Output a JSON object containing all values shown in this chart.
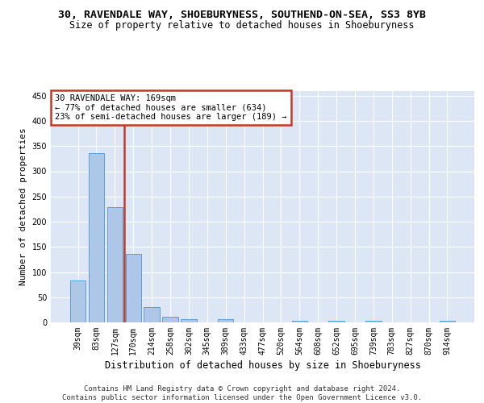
{
  "title1": "30, RAVENDALE WAY, SHOEBURYNESS, SOUTHEND-ON-SEA, SS3 8YB",
  "title2": "Size of property relative to detached houses in Shoeburyness",
  "xlabel": "Distribution of detached houses by size in Shoeburyness",
  "ylabel": "Number of detached properties",
  "categories": [
    "39sqm",
    "83sqm",
    "127sqm",
    "170sqm",
    "214sqm",
    "258sqm",
    "302sqm",
    "345sqm",
    "389sqm",
    "433sqm",
    "477sqm",
    "520sqm",
    "564sqm",
    "608sqm",
    "652sqm",
    "695sqm",
    "739sqm",
    "783sqm",
    "827sqm",
    "870sqm",
    "914sqm"
  ],
  "values": [
    84,
    336,
    229,
    136,
    30,
    11,
    6,
    0,
    6,
    0,
    0,
    0,
    4,
    0,
    4,
    0,
    4,
    0,
    0,
    0,
    4
  ],
  "bar_color": "#aec6e8",
  "bar_edge_color": "#5a9fd4",
  "vline_color": "#c0392b",
  "annotation_line1": "30 RAVENDALE WAY: 169sqm",
  "annotation_line2": "← 77% of detached houses are smaller (634)",
  "annotation_line3": "23% of semi-detached houses are larger (189) →",
  "annotation_box_color": "#c0392b",
  "ylim": [
    0,
    460
  ],
  "yticks": [
    0,
    50,
    100,
    150,
    200,
    250,
    300,
    350,
    400,
    450
  ],
  "background_color": "#dce6f5",
  "grid_color": "#ffffff",
  "footer_text": "Contains HM Land Registry data © Crown copyright and database right 2024.\nContains public sector information licensed under the Open Government Licence v3.0.",
  "title1_fontsize": 9.5,
  "title2_fontsize": 8.5,
  "axis_label_fontsize": 8,
  "tick_fontsize": 7,
  "footer_fontsize": 6.5
}
